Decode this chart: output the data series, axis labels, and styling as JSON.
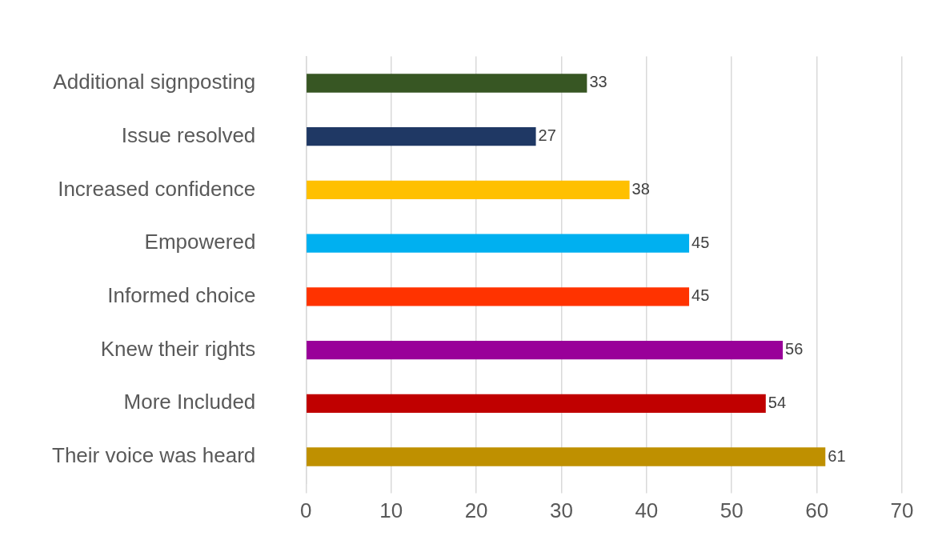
{
  "chart_data": {
    "type": "bar",
    "orientation": "horizontal",
    "categories": [
      "Additional signposting",
      "Issue resolved",
      "Increased confidence",
      "Empowered",
      "Informed choice",
      "Knew their rights",
      "More Included",
      "Their voice was heard"
    ],
    "values": [
      33,
      27,
      38,
      45,
      45,
      56,
      54,
      61
    ],
    "colors": [
      "#375623",
      "#1f3864",
      "#ffc000",
      "#00b0f0",
      "#ff3300",
      "#990099",
      "#c00000",
      "#bf9000"
    ],
    "xlim": [
      0,
      70
    ],
    "xticks": [
      0,
      10,
      20,
      30,
      40,
      50,
      60,
      70
    ],
    "grid": "x",
    "legend": false,
    "data_labels": true
  }
}
